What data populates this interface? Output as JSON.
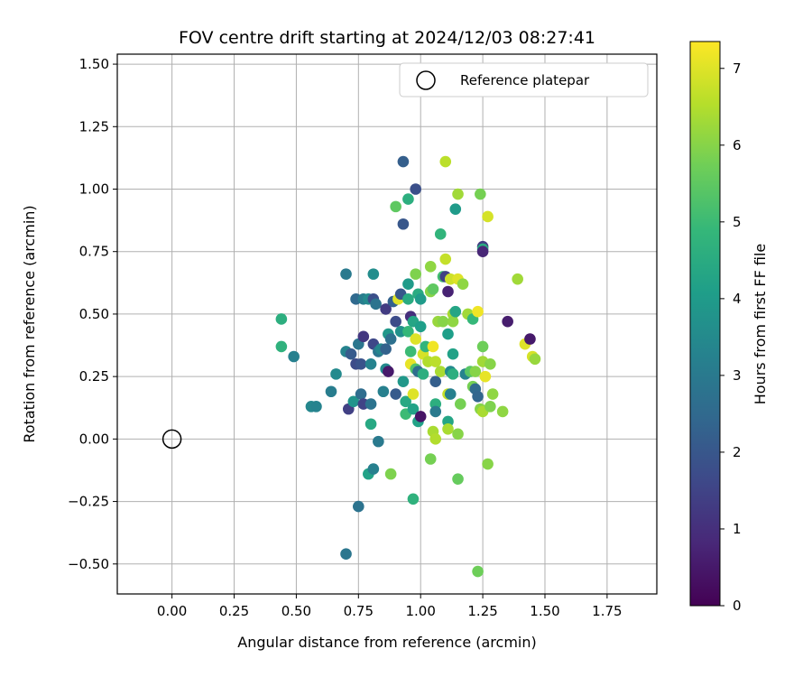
{
  "chart_data": {
    "type": "scatter",
    "title": "FOV centre drift starting at 2024/12/03 08:27:41",
    "xlabel": "Angular distance from reference (arcmin)",
    "ylabel": "Rotation from reference (arcmin)",
    "xlim": [
      -0.22,
      1.95
    ],
    "ylim": [
      -0.62,
      1.54
    ],
    "xticks": [
      "0.00",
      "0.25",
      "0.50",
      "0.75",
      "1.00",
      "1.25",
      "1.50",
      "1.75"
    ],
    "xtick_values": [
      0,
      0.25,
      0.5,
      0.75,
      1.0,
      1.25,
      1.5,
      1.75
    ],
    "yticks": [
      "−0.50",
      "−0.25",
      "0.00",
      "0.25",
      "0.50",
      "0.75",
      "1.00",
      "1.25",
      "1.50"
    ],
    "ytick_values": [
      -0.5,
      -0.25,
      0,
      0.25,
      0.5,
      0.75,
      1.0,
      1.25,
      1.5
    ],
    "grid": true,
    "legend": {
      "position": "top-right",
      "entries": [
        "Reference platepar"
      ]
    },
    "reference_point": {
      "x": 0.0,
      "y": 0.0
    },
    "colorbar": {
      "label": "Hours from first FF file",
      "range": [
        0,
        7.35
      ],
      "ticks": [
        "0",
        "1",
        "2",
        "3",
        "4",
        "5",
        "6",
        "7"
      ],
      "tick_values": [
        0,
        1,
        2,
        3,
        4,
        5,
        6,
        7
      ],
      "colormap": "viridis"
    },
    "points": [
      {
        "x": 0.44,
        "y": 0.48,
        "c": 4.6
      },
      {
        "x": 0.44,
        "y": 0.37,
        "c": 4.7
      },
      {
        "x": 0.49,
        "y": 0.33,
        "c": 3.2
      },
      {
        "x": 0.56,
        "y": 0.13,
        "c": 3.4
      },
      {
        "x": 0.58,
        "y": 0.13,
        "c": 3.3
      },
      {
        "x": 0.64,
        "y": 0.19,
        "c": 3.1
      },
      {
        "x": 0.66,
        "y": 0.26,
        "c": 3.5
      },
      {
        "x": 0.7,
        "y": 0.66,
        "c": 3.0
      },
      {
        "x": 0.7,
        "y": 0.35,
        "c": 3.3
      },
      {
        "x": 0.71,
        "y": 0.12,
        "c": 1.4
      },
      {
        "x": 0.72,
        "y": 0.34,
        "c": 2.1
      },
      {
        "x": 0.73,
        "y": 0.15,
        "c": 3.8
      },
      {
        "x": 0.74,
        "y": 0.56,
        "c": 2.5
      },
      {
        "x": 0.74,
        "y": 0.3,
        "c": 1.7
      },
      {
        "x": 0.75,
        "y": 0.38,
        "c": 2.9
      },
      {
        "x": 0.76,
        "y": 0.18,
        "c": 2.6
      },
      {
        "x": 0.77,
        "y": 0.41,
        "c": 1.2
      },
      {
        "x": 0.77,
        "y": 0.56,
        "c": 3.1
      },
      {
        "x": 0.76,
        "y": 0.3,
        "c": 1.9
      },
      {
        "x": 0.77,
        "y": 0.14,
        "c": 1.5
      },
      {
        "x": 0.79,
        "y": 0.56,
        "c": 3.5
      },
      {
        "x": 0.79,
        "y": -0.14,
        "c": 4.2
      },
      {
        "x": 0.8,
        "y": 0.06,
        "c": 4.4
      },
      {
        "x": 0.8,
        "y": 0.14,
        "c": 2.8
      },
      {
        "x": 0.8,
        "y": 0.3,
        "c": 3.3
      },
      {
        "x": 0.81,
        "y": 0.56,
        "c": 1.8
      },
      {
        "x": 0.81,
        "y": 0.66,
        "c": 3.6
      },
      {
        "x": 0.81,
        "y": 0.38,
        "c": 1.6
      },
      {
        "x": 0.81,
        "y": -0.12,
        "c": 3.2
      },
      {
        "x": 0.82,
        "y": 0.54,
        "c": 2.8
      },
      {
        "x": 0.83,
        "y": 0.35,
        "c": 2.9
      },
      {
        "x": 0.84,
        "y": 0.36,
        "c": 3.4
      },
      {
        "x": 0.83,
        "y": -0.01,
        "c": 3.0
      },
      {
        "x": 0.85,
        "y": 0.19,
        "c": 3.2
      },
      {
        "x": 0.86,
        "y": 0.28,
        "c": 3.5
      },
      {
        "x": 0.86,
        "y": 0.52,
        "c": 1.3
      },
      {
        "x": 0.86,
        "y": 0.36,
        "c": 2.3
      },
      {
        "x": 0.87,
        "y": 0.27,
        "c": 0.5
      },
      {
        "x": 0.87,
        "y": 0.42,
        "c": 3.9
      },
      {
        "x": 0.88,
        "y": 0.4,
        "c": 2.7
      },
      {
        "x": 0.88,
        "y": -0.14,
        "c": 5.9
      },
      {
        "x": 0.89,
        "y": 0.55,
        "c": 2.3
      },
      {
        "x": 0.9,
        "y": 0.47,
        "c": 1.7
      },
      {
        "x": 0.9,
        "y": 0.18,
        "c": 2.1
      },
      {
        "x": 0.9,
        "y": 0.93,
        "c": 5.5
      },
      {
        "x": 0.91,
        "y": 0.56,
        "c": 7.0
      },
      {
        "x": 0.92,
        "y": 0.58,
        "c": 2.0
      },
      {
        "x": 0.92,
        "y": 0.43,
        "c": 3.7
      },
      {
        "x": 0.93,
        "y": 0.23,
        "c": 3.9
      },
      {
        "x": 0.93,
        "y": 0.86,
        "c": 2.0
      },
      {
        "x": 0.93,
        "y": 1.11,
        "c": 2.2
      },
      {
        "x": 0.94,
        "y": 0.15,
        "c": 4.4
      },
      {
        "x": 0.94,
        "y": 0.1,
        "c": 5.0
      },
      {
        "x": 0.95,
        "y": 0.43,
        "c": 4.9
      },
      {
        "x": 0.95,
        "y": 0.96,
        "c": 4.6
      },
      {
        "x": 0.95,
        "y": 0.62,
        "c": 4.0
      },
      {
        "x": 0.95,
        "y": 0.56,
        "c": 4.5
      },
      {
        "x": 0.96,
        "y": 0.49,
        "c": 1.0
      },
      {
        "x": 0.96,
        "y": 0.35,
        "c": 5.0
      },
      {
        "x": 0.96,
        "y": 0.3,
        "c": 7.1
      },
      {
        "x": 0.97,
        "y": 0.12,
        "c": 4.2
      },
      {
        "x": 0.97,
        "y": 0.18,
        "c": 7.0
      },
      {
        "x": 0.97,
        "y": -0.24,
        "c": 4.7
      },
      {
        "x": 0.97,
        "y": 0.47,
        "c": 4.3
      },
      {
        "x": 0.98,
        "y": 1.0,
        "c": 1.8
      },
      {
        "x": 0.98,
        "y": 0.28,
        "c": 5.3
      },
      {
        "x": 0.98,
        "y": 0.66,
        "c": 5.9
      },
      {
        "x": 0.98,
        "y": 0.4,
        "c": 7.0
      },
      {
        "x": 0.99,
        "y": 0.58,
        "c": 4.5
      },
      {
        "x": 0.99,
        "y": 0.07,
        "c": 4.2
      },
      {
        "x": 0.99,
        "y": 0.27,
        "c": 2.6
      },
      {
        "x": 1.0,
        "y": 0.09,
        "c": 0.4
      },
      {
        "x": 1.0,
        "y": 0.56,
        "c": 4.0
      },
      {
        "x": 1.0,
        "y": 0.45,
        "c": 4.1
      },
      {
        "x": 1.01,
        "y": 0.26,
        "c": 4.6
      },
      {
        "x": 1.01,
        "y": 0.34,
        "c": 6.9
      },
      {
        "x": 1.02,
        "y": 0.37,
        "c": 4.8
      },
      {
        "x": 1.03,
        "y": 0.31,
        "c": 6.5
      },
      {
        "x": 1.04,
        "y": 0.69,
        "c": 6.1
      },
      {
        "x": 1.04,
        "y": -0.08,
        "c": 5.8
      },
      {
        "x": 1.04,
        "y": 0.59,
        "c": 6.0
      },
      {
        "x": 1.05,
        "y": 0.37,
        "c": 7.2
      },
      {
        "x": 1.05,
        "y": 0.03,
        "c": 6.4
      },
      {
        "x": 1.05,
        "y": 0.6,
        "c": 5.5
      },
      {
        "x": 1.06,
        "y": 0.0,
        "c": 6.5
      },
      {
        "x": 1.06,
        "y": 0.31,
        "c": 6.6
      },
      {
        "x": 1.06,
        "y": 0.14,
        "c": 4.6
      },
      {
        "x": 1.06,
        "y": 0.11,
        "c": 3.0
      },
      {
        "x": 1.06,
        "y": 0.23,
        "c": 2.2
      },
      {
        "x": 1.07,
        "y": 0.47,
        "c": 6.2
      },
      {
        "x": 1.08,
        "y": 0.82,
        "c": 4.8
      },
      {
        "x": 1.08,
        "y": 0.27,
        "c": 6.4
      },
      {
        "x": 1.09,
        "y": 0.47,
        "c": 6.0
      },
      {
        "x": 1.09,
        "y": 0.65,
        "c": 5.1
      },
      {
        "x": 1.1,
        "y": 0.72,
        "c": 6.7
      },
      {
        "x": 1.1,
        "y": 1.11,
        "c": 6.6
      },
      {
        "x": 1.1,
        "y": 0.65,
        "c": 1.4
      },
      {
        "x": 1.11,
        "y": 0.59,
        "c": 0.7
      },
      {
        "x": 1.11,
        "y": 0.42,
        "c": 4.1
      },
      {
        "x": 1.11,
        "y": 0.07,
        "c": 4.3
      },
      {
        "x": 1.11,
        "y": 0.18,
        "c": 6.7
      },
      {
        "x": 1.11,
        "y": 0.04,
        "c": 6.4
      },
      {
        "x": 1.12,
        "y": 0.18,
        "c": 3.2
      },
      {
        "x": 1.12,
        "y": 0.27,
        "c": 3.5
      },
      {
        "x": 1.12,
        "y": 0.64,
        "c": 6.8
      },
      {
        "x": 1.13,
        "y": 0.5,
        "c": 6.4
      },
      {
        "x": 1.13,
        "y": 0.34,
        "c": 4.2
      },
      {
        "x": 1.13,
        "y": 0.26,
        "c": 4.6
      },
      {
        "x": 1.13,
        "y": 0.47,
        "c": 6.1
      },
      {
        "x": 1.14,
        "y": 0.92,
        "c": 4.0
      },
      {
        "x": 1.14,
        "y": 0.51,
        "c": 4.3
      },
      {
        "x": 1.15,
        "y": 0.98,
        "c": 6.3
      },
      {
        "x": 1.15,
        "y": -0.16,
        "c": 5.6
      },
      {
        "x": 1.15,
        "y": 0.02,
        "c": 6.0
      },
      {
        "x": 1.15,
        "y": 0.64,
        "c": 7.0
      },
      {
        "x": 1.16,
        "y": 0.14,
        "c": 5.8
      },
      {
        "x": 1.17,
        "y": 0.62,
        "c": 6.1
      },
      {
        "x": 1.18,
        "y": 0.26,
        "c": 3.3
      },
      {
        "x": 1.19,
        "y": 0.5,
        "c": 6.3
      },
      {
        "x": 1.2,
        "y": 0.27,
        "c": 5.4
      },
      {
        "x": 1.21,
        "y": 0.21,
        "c": 5.8
      },
      {
        "x": 1.21,
        "y": 0.48,
        "c": 4.9
      },
      {
        "x": 1.22,
        "y": 0.2,
        "c": 2.5
      },
      {
        "x": 1.22,
        "y": 0.27,
        "c": 6.0
      },
      {
        "x": 1.23,
        "y": 0.51,
        "c": 7.2
      },
      {
        "x": 1.23,
        "y": -0.53,
        "c": 5.7
      },
      {
        "x": 1.23,
        "y": 0.17,
        "c": 2.4
      },
      {
        "x": 1.24,
        "y": 0.98,
        "c": 5.8
      },
      {
        "x": 1.24,
        "y": 0.12,
        "c": 6.0
      },
      {
        "x": 1.25,
        "y": 0.37,
        "c": 5.7
      },
      {
        "x": 1.25,
        "y": 0.77,
        "c": 1.3
      },
      {
        "x": 1.25,
        "y": 0.76,
        "c": 4.5
      },
      {
        "x": 1.25,
        "y": 0.75,
        "c": 0.8
      },
      {
        "x": 1.25,
        "y": 0.31,
        "c": 6.3
      },
      {
        "x": 1.25,
        "y": 0.11,
        "c": 6.4
      },
      {
        "x": 1.26,
        "y": 0.25,
        "c": 7.1
      },
      {
        "x": 1.27,
        "y": -0.1,
        "c": 6.0
      },
      {
        "x": 1.27,
        "y": 0.89,
        "c": 6.9
      },
      {
        "x": 1.28,
        "y": 0.13,
        "c": 5.9
      },
      {
        "x": 1.28,
        "y": 0.3,
        "c": 6.0
      },
      {
        "x": 1.29,
        "y": 0.18,
        "c": 6.1
      },
      {
        "x": 1.33,
        "y": 0.11,
        "c": 6.1
      },
      {
        "x": 1.35,
        "y": 0.47,
        "c": 0.6
      },
      {
        "x": 1.39,
        "y": 0.64,
        "c": 6.3
      },
      {
        "x": 1.42,
        "y": 0.38,
        "c": 7.0
      },
      {
        "x": 1.44,
        "y": 0.4,
        "c": 0.5
      },
      {
        "x": 1.45,
        "y": 0.33,
        "c": 6.9
      },
      {
        "x": 1.46,
        "y": 0.32,
        "c": 6.2
      },
      {
        "x": 0.7,
        "y": -0.46,
        "c": 2.9
      },
      {
        "x": 0.75,
        "y": -0.27,
        "c": 2.8
      }
    ]
  }
}
